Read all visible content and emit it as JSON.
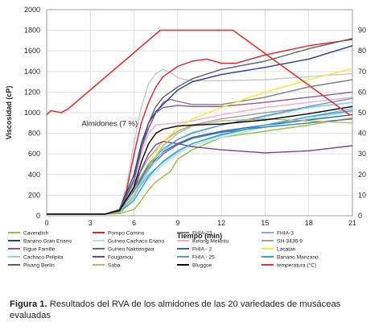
{
  "chart_data": {
    "type": "line",
    "xlabel": "Tiempo (min)",
    "ylabel": "Viscosidad (cP)",
    "xlim": [
      0,
      21
    ],
    "ylim": [
      0,
      2000
    ],
    "y2lim": [
      0,
      100
    ],
    "xticks": [
      0,
      3,
      6,
      9,
      12,
      15,
      18,
      21
    ],
    "yticks": [
      0,
      200,
      400,
      600,
      800,
      1000,
      1200,
      1400,
      1600,
      1800,
      2000
    ],
    "y2ticks": [
      0,
      10,
      20,
      30,
      40,
      50,
      60,
      70,
      80,
      90
    ],
    "grid": true,
    "legend_position": "bottom",
    "annotation": "Almidones (7 %)",
    "series": [
      {
        "name": "Cavendish",
        "color": "#8dc63f",
        "x": [
          0,
          4,
          5,
          6,
          6.5,
          7,
          7.5,
          8,
          8.5,
          9,
          10,
          12,
          15,
          18,
          21
        ],
        "y": [
          15,
          15,
          20,
          60,
          150,
          250,
          330,
          380,
          430,
          550,
          640,
          760,
          820,
          880,
          950
        ]
      },
      {
        "name": "Pompo Comino",
        "color": "#ed1c24",
        "x": [
          0,
          4,
          5,
          5.5,
          6,
          6.5,
          7,
          7.5,
          8,
          9,
          10,
          11,
          12,
          13,
          15,
          18,
          21
        ],
        "y": [
          15,
          15,
          50,
          250,
          600,
          900,
          1100,
          1250,
          1350,
          1450,
          1500,
          1520,
          1480,
          1480,
          1560,
          1650,
          1710
        ]
      },
      {
        "name": "FHIA-23",
        "color": "#808080",
        "x": [
          0,
          4,
          5,
          6,
          6.5,
          7,
          7.5,
          8,
          8.5,
          9,
          10,
          12,
          15,
          18,
          21
        ],
        "y": [
          15,
          15,
          40,
          350,
          650,
          850,
          1000,
          1100,
          1130,
          1110,
          1080,
          1080,
          1150,
          1250,
          1320
        ]
      },
      {
        "name": "FHIA-3",
        "color": "#7eb2dc",
        "x": [
          0,
          4,
          5,
          6,
          7,
          8,
          9,
          10,
          12,
          15,
          18,
          21
        ],
        "y": [
          15,
          15,
          30,
          200,
          400,
          520,
          620,
          700,
          780,
          880,
          960,
          1040
        ]
      },
      {
        "name": "Banano Gran Enano",
        "color": "#1f3f99",
        "x": [
          0,
          4,
          5,
          6,
          6.5,
          7,
          7.5,
          8,
          8.5,
          9,
          10,
          12,
          15,
          18,
          21
        ],
        "y": [
          15,
          15,
          60,
          400,
          700,
          900,
          1010,
          1080,
          1150,
          1220,
          1300,
          1370,
          1440,
          1520,
          1650
        ]
      },
      {
        "name": "Guineo Cachaco Enano",
        "color": "#b5e0ef",
        "x": [
          0,
          4,
          5,
          6,
          7,
          8,
          9,
          10,
          12,
          15,
          18,
          21
        ],
        "y": [
          15,
          15,
          30,
          160,
          360,
          500,
          600,
          680,
          760,
          860,
          940,
          1010
        ]
      },
      {
        "name": "Kelong Mekintu",
        "color": "#f9a8c9",
        "x": [
          0,
          4,
          5,
          6,
          6.5,
          7,
          7.5,
          8,
          9,
          10,
          12,
          15,
          18,
          21
        ],
        "y": [
          15,
          15,
          50,
          330,
          600,
          800,
          880,
          890,
          900,
          920,
          980,
          1050,
          1100,
          1150
        ]
      },
      {
        "name": "SH-3436-9",
        "color": "#a1a1a1",
        "x": [
          0,
          4,
          5,
          6,
          7,
          8,
          9,
          10,
          12,
          15,
          18,
          21
        ],
        "y": [
          15,
          15,
          50,
          320,
          560,
          720,
          820,
          880,
          940,
          1000,
          1050,
          1100
        ]
      },
      {
        "name": "Figue Famille",
        "color": "#8b5a9e",
        "x": [
          0,
          4,
          5,
          6,
          6.5,
          7,
          7.5,
          8,
          9,
          10,
          12,
          15,
          18,
          21
        ],
        "y": [
          15,
          15,
          60,
          350,
          650,
          850,
          1000,
          1050,
          1070,
          1060,
          1060,
          1100,
          1150,
          1200
        ]
      },
      {
        "name": "Guineo Nakitengwa",
        "color": "#4f6fad",
        "x": [
          0,
          4,
          5,
          6,
          7,
          8,
          9,
          10,
          12,
          15,
          18,
          21
        ],
        "y": [
          15,
          15,
          40,
          240,
          460,
          600,
          690,
          750,
          810,
          860,
          900,
          940
        ]
      },
      {
        "name": "FHIA - 2",
        "color": "#2b6ea0",
        "x": [
          0,
          4,
          5,
          6,
          7,
          8,
          9,
          10,
          12,
          15,
          18,
          21
        ],
        "y": [
          15,
          15,
          40,
          260,
          480,
          620,
          700,
          760,
          820,
          880,
          930,
          980
        ]
      },
      {
        "name": "Lacatan",
        "color": "#f7ec2a",
        "x": [
          0,
          4,
          5,
          6,
          7,
          8,
          9,
          10,
          12,
          15,
          18,
          21
        ],
        "y": [
          15,
          15,
          40,
          250,
          520,
          720,
          850,
          940,
          1050,
          1200,
          1320,
          1430
        ]
      },
      {
        "name": "Cachaco Pelipita",
        "color": "#8fd1e6",
        "x": [
          0,
          4,
          5,
          6,
          7,
          8,
          9,
          10,
          12,
          15,
          18,
          21
        ],
        "y": [
          15,
          15,
          30,
          180,
          440,
          630,
          740,
          810,
          880,
          960,
          1050,
          1100
        ]
      },
      {
        "name": "Fougamou",
        "color": "#7f3f98",
        "x": [
          0,
          4,
          5,
          6,
          6.5,
          7,
          7.5,
          8,
          9,
          10,
          12,
          15,
          18,
          21
        ],
        "y": [
          15,
          15,
          50,
          250,
          450,
          600,
          690,
          720,
          700,
          670,
          640,
          610,
          630,
          680
        ]
      },
      {
        "name": "FHIA - 25",
        "color": "#5b9bd5",
        "x": [
          0,
          4,
          5,
          6,
          7,
          8,
          9,
          10,
          12,
          15,
          18,
          21
        ],
        "y": [
          15,
          15,
          40,
          260,
          500,
          650,
          740,
          800,
          880,
          970,
          1060,
          1140
        ]
      },
      {
        "name": "Banano Manzano",
        "color": "#29abe2",
        "x": [
          0,
          4,
          5,
          6,
          7,
          8,
          9,
          10,
          12,
          15,
          18,
          21
        ],
        "y": [
          15,
          15,
          30,
          150,
          380,
          530,
          630,
          700,
          790,
          880,
          960,
          1020
        ]
      },
      {
        "name": "Pisang Berlin",
        "color": "#606060",
        "x": [
          0,
          4,
          5,
          6,
          6.5,
          7,
          7.5,
          8,
          9,
          10,
          12,
          15,
          18,
          21
        ],
        "y": [
          15,
          15,
          50,
          350,
          650,
          900,
          1060,
          1150,
          1250,
          1330,
          1420,
          1500,
          1620,
          1720
        ]
      },
      {
        "name": "Saba",
        "color": "#b5b86b",
        "x": [
          0,
          4,
          5,
          6,
          7,
          8,
          9,
          10,
          12,
          15,
          18,
          21
        ],
        "y": [
          15,
          15,
          30,
          200,
          470,
          680,
          800,
          870,
          920,
          940,
          920,
          900
        ]
      },
      {
        "name": "Bluggoe",
        "color": "#000000",
        "x": [
          0,
          4,
          5,
          6,
          6.5,
          7,
          7.5,
          8,
          9,
          10,
          12,
          15,
          18,
          21
        ],
        "y": [
          15,
          15,
          50,
          280,
          520,
          700,
          800,
          840,
          870,
          880,
          890,
          930,
          990,
          1060
        ]
      },
      {
        "name": "temperatura (°C)",
        "color": "#e8322b",
        "axis": "right",
        "x": [
          0,
          0.3,
          1,
          1.5,
          7.8,
          12.8,
          20.8,
          21
        ],
        "y": [
          49,
          51,
          50,
          52,
          90,
          90,
          49,
          49
        ]
      }
    ],
    "extra_lines": [
      {
        "color": "#c8c8c8",
        "x": [
          0,
          4,
          5,
          5.5,
          6,
          6.5,
          7,
          7.5,
          8,
          8.5,
          9,
          9.5,
          10,
          12,
          15,
          18,
          21
        ],
        "y": [
          15,
          15,
          60,
          300,
          700,
          1050,
          1280,
          1380,
          1420,
          1390,
          1340,
          1320,
          1310,
          1310,
          1320,
          1350,
          1380
        ]
      }
    ]
  },
  "caption": {
    "label": "Figura 1.",
    "text": "Resultados del RVA de los almidones de las 20 variedades de musáceas evaluadas"
  }
}
